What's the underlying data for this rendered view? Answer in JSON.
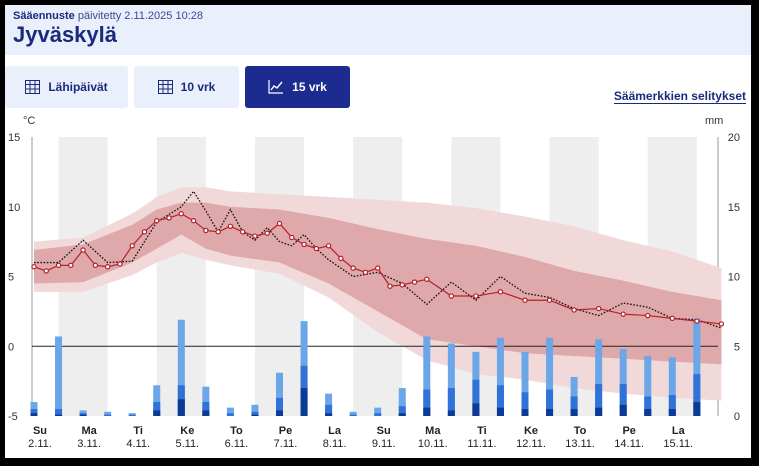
{
  "header": {
    "updated_label": "Sääennuste",
    "updated_value": "päivitetty 2.11.2025 10:28",
    "city": "Jyväskylä"
  },
  "tabs": [
    {
      "label": "Lähipäivät",
      "icon": "table-icon"
    },
    {
      "label": "10 vrk",
      "icon": "table-icon"
    },
    {
      "label": "15 vrk",
      "icon": "chart-line-icon",
      "active": true
    }
  ],
  "legend_link": "Säämerkkien selitykset",
  "chart_data": {
    "type": "line",
    "y_left_unit": "°C",
    "y_right_unit": "mm",
    "y_left_ticks": [
      15,
      10,
      5,
      0,
      -5
    ],
    "y_right_ticks": [
      20,
      15,
      10,
      5,
      0
    ],
    "y_left_range": [
      -5,
      15
    ],
    "y_right_range": [
      0,
      20
    ],
    "days": [
      {
        "name": "Su",
        "date": "2.11."
      },
      {
        "name": "Ma",
        "date": "3.11."
      },
      {
        "name": "Ti",
        "date": "4.11."
      },
      {
        "name": "Ke",
        "date": "5.11."
      },
      {
        "name": "To",
        "date": "6.11."
      },
      {
        "name": "Pe",
        "date": "7.11."
      },
      {
        "name": "La",
        "date": "8.11."
      },
      {
        "name": "Su",
        "date": "9.11."
      },
      {
        "name": "Ma",
        "date": "10.11."
      },
      {
        "name": "Ti",
        "date": "11.11."
      },
      {
        "name": "Ke",
        "date": "12.11."
      },
      {
        "name": "To",
        "date": "13.11."
      },
      {
        "name": "Pe",
        "date": "14.11."
      },
      {
        "name": "La",
        "date": "15.11."
      }
    ],
    "temperature_median": {
      "t": [
        0,
        0.25,
        0.5,
        0.75,
        1,
        1.25,
        1.5,
        1.75,
        2,
        2.25,
        2.5,
        2.75,
        3,
        3.25,
        3.5,
        3.75,
        4,
        4.25,
        4.5,
        4.75,
        5,
        5.25,
        5.5,
        5.75,
        6,
        6.25,
        6.5,
        6.75,
        7,
        7.25,
        7.5,
        7.75,
        8,
        8.5,
        9,
        9.5,
        10,
        10.5,
        11,
        11.5,
        12,
        12.5,
        13,
        13.5,
        14
      ],
      "values": [
        5.7,
        5.4,
        5.8,
        5.8,
        6.9,
        5.8,
        5.7,
        5.9,
        7.2,
        8.2,
        9.0,
        9.2,
        9.5,
        9.0,
        8.3,
        8.2,
        8.6,
        8.2,
        7.9,
        8.1,
        8.8,
        7.8,
        7.3,
        7.0,
        7.2,
        6.3,
        5.6,
        5.3,
        5.6,
        4.3,
        4.4,
        4.6,
        4.8,
        3.6,
        3.6,
        3.9,
        3.3,
        3.3,
        2.6,
        2.7,
        2.3,
        2.2,
        2.0,
        1.8,
        1.6
      ]
    },
    "temperature_dotted": {
      "t": [
        0,
        0.5,
        1,
        1.5,
        2,
        2.5,
        3,
        3.25,
        3.5,
        3.75,
        4,
        4.25,
        4.5,
        4.75,
        5,
        5.25,
        5.5,
        5.75,
        6,
        6.5,
        7,
        7.5,
        8,
        8.5,
        9,
        9.5,
        10,
        10.5,
        11,
        11.5,
        12,
        12.5,
        13,
        13.5,
        14
      ],
      "values": [
        6.0,
        6.0,
        7.6,
        6.0,
        6.1,
        8.9,
        10.0,
        11.1,
        9.7,
        8.2,
        9.8,
        8.2,
        7.6,
        8.5,
        7.5,
        7.2,
        8.0,
        7.0,
        6.2,
        5.0,
        5.3,
        4.5,
        3.0,
        4.6,
        3.3,
        5.0,
        3.8,
        3.5,
        2.7,
        2.2,
        3.1,
        2.8,
        2.0,
        1.9,
        1.3
      ]
    },
    "band_inner": {
      "t": [
        0,
        1,
        2,
        2.5,
        3,
        3.5,
        4,
        5,
        6,
        7,
        8,
        9,
        10,
        11,
        12,
        13,
        14
      ],
      "low": [
        4.5,
        4.6,
        6.0,
        7.0,
        8.0,
        7.0,
        6.5,
        6.0,
        4.5,
        2.5,
        0.5,
        0.0,
        -0.5,
        -0.7,
        -0.9,
        -1.1,
        -1.3
      ],
      "high": [
        6.9,
        7.3,
        8.7,
        9.8,
        10.3,
        10.3,
        10.0,
        9.8,
        9.2,
        8.4,
        7.7,
        7.2,
        6.4,
        5.4,
        4.7,
        3.9,
        3.3
      ]
    },
    "band_outer": {
      "t": [
        0,
        1,
        2,
        2.5,
        3,
        3.5,
        4,
        5,
        6,
        7,
        8,
        9,
        10,
        11,
        12,
        13,
        14
      ],
      "low": [
        3.9,
        3.9,
        5.1,
        6.0,
        6.7,
        6.2,
        5.8,
        5.2,
        3.5,
        1.0,
        -1.0,
        -2.0,
        -2.4,
        -3.0,
        -3.4,
        -3.7,
        -3.9
      ],
      "high": [
        7.5,
        7.8,
        9.5,
        10.7,
        11.4,
        11.4,
        11.1,
        10.9,
        10.7,
        10.5,
        10.3,
        9.9,
        9.3,
        8.6,
        7.6,
        6.8,
        5.6
      ]
    },
    "precipitation": {
      "t": [
        0,
        0.5,
        1,
        1.5,
        2,
        2.5,
        3,
        3.5,
        4,
        4.5,
        5,
        5.5,
        6,
        6.5,
        7,
        7.5,
        8,
        8.5,
        9,
        9.5,
        10,
        10.5,
        11,
        11.5,
        12,
        12.5,
        13,
        13.5
      ],
      "high": [
        1.0,
        5.7,
        0.4,
        0.3,
        0.2,
        2.2,
        6.9,
        2.1,
        0.6,
        0.8,
        3.1,
        6.8,
        1.6,
        0.3,
        0.6,
        2.0,
        5.7,
        5.2,
        4.6,
        5.6,
        4.6,
        5.6,
        2.8,
        5.5,
        4.8,
        4.3,
        4.2,
        7.0
      ],
      "mid": [
        0.5,
        0.5,
        0.2,
        0.1,
        0.1,
        1.0,
        2.2,
        1.0,
        0.2,
        0.3,
        1.3,
        3.6,
        0.8,
        0.1,
        0.2,
        0.7,
        1.9,
        2.0,
        2.6,
        2.2,
        1.7,
        1.9,
        1.4,
        2.3,
        2.3,
        1.4,
        1.5,
        3.0
      ],
      "low": [
        0.2,
        0.1,
        0.1,
        0.0,
        0.0,
        0.4,
        1.2,
        0.4,
        0.0,
        0.1,
        0.4,
        2.0,
        0.2,
        0.0,
        0.0,
        0.2,
        0.6,
        0.4,
        0.9,
        0.6,
        0.5,
        0.5,
        0.5,
        0.6,
        0.8,
        0.5,
        0.5,
        1.0
      ]
    },
    "colors": {
      "band_outer": "#f1d9da",
      "band_inner": "#dfa8ab",
      "median_line": "#b3212b",
      "dotted_line": "#111111",
      "precip_light": "#6aa6e8",
      "precip_mid": "#2f73d8",
      "precip_dark": "#0b3b96",
      "shade": "#eeeeee"
    }
  }
}
